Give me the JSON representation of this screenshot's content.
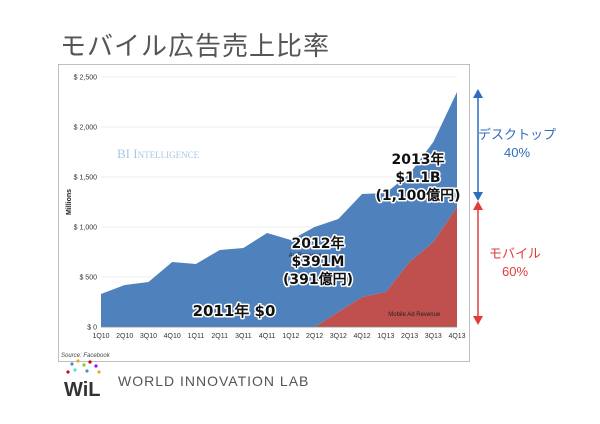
{
  "slide": {
    "title": "モバイル広告売上比率",
    "watermark": "BI Intelligence",
    "source": "Source: Facebook"
  },
  "annotations": [
    {
      "id": "2011",
      "lines": [
        "2011年 $0"
      ]
    },
    {
      "id": "2012",
      "lines": [
        "2012年",
        "$391M",
        "(391億円)"
      ]
    },
    {
      "id": "2013",
      "lines": [
        "2013年",
        "$1.1B",
        "(1,100億円)"
      ]
    }
  ],
  "side_labels": {
    "desktop": {
      "name": "デスクトップ",
      "pct": "40%",
      "color": "#2e6cc0"
    },
    "mobile": {
      "name": "モバイル",
      "pct": "60%",
      "color": "#e23b3b"
    }
  },
  "logo": {
    "mark": "WiL",
    "text": "WORLD INNOVATION LAB"
  },
  "chart_data": {
    "type": "area",
    "stacked": true,
    "ylabel": "Millions",
    "ylim": [
      0,
      2500
    ],
    "yticks": [
      {
        "value": 0,
        "label": "$ 0"
      },
      {
        "value": 500,
        "label": "$ 500"
      },
      {
        "value": 1000,
        "label": "$ 1,000"
      },
      {
        "value": 1500,
        "label": "$ 1,500"
      },
      {
        "value": 2000,
        "label": "$ 2,000"
      },
      {
        "value": 2500,
        "label": "$ 2,500"
      }
    ],
    "categories": [
      "1Q10",
      "2Q10",
      "3Q10",
      "4Q10",
      "1Q11",
      "2Q11",
      "3Q11",
      "4Q11",
      "1Q12",
      "2Q12",
      "3Q12",
      "4Q12",
      "1Q13",
      "2Q13",
      "3Q13",
      "4Q13"
    ],
    "series": [
      {
        "name": "Mobile Ad Revenue",
        "color": "#c0504d",
        "values": [
          0,
          0,
          0,
          0,
          0,
          0,
          0,
          0,
          0,
          0,
          150,
          300,
          350,
          650,
          850,
          1200
        ]
      },
      {
        "name": "Ad Revenue",
        "color": "#4f81bd",
        "values": [
          330,
          420,
          450,
          650,
          630,
          770,
          790,
          940,
          870,
          1000,
          930,
          1030,
          990,
          880,
          1000,
          1150
        ]
      }
    ],
    "colors": {
      "grid": "#d9d9d9",
      "axis": "#888888"
    }
  }
}
